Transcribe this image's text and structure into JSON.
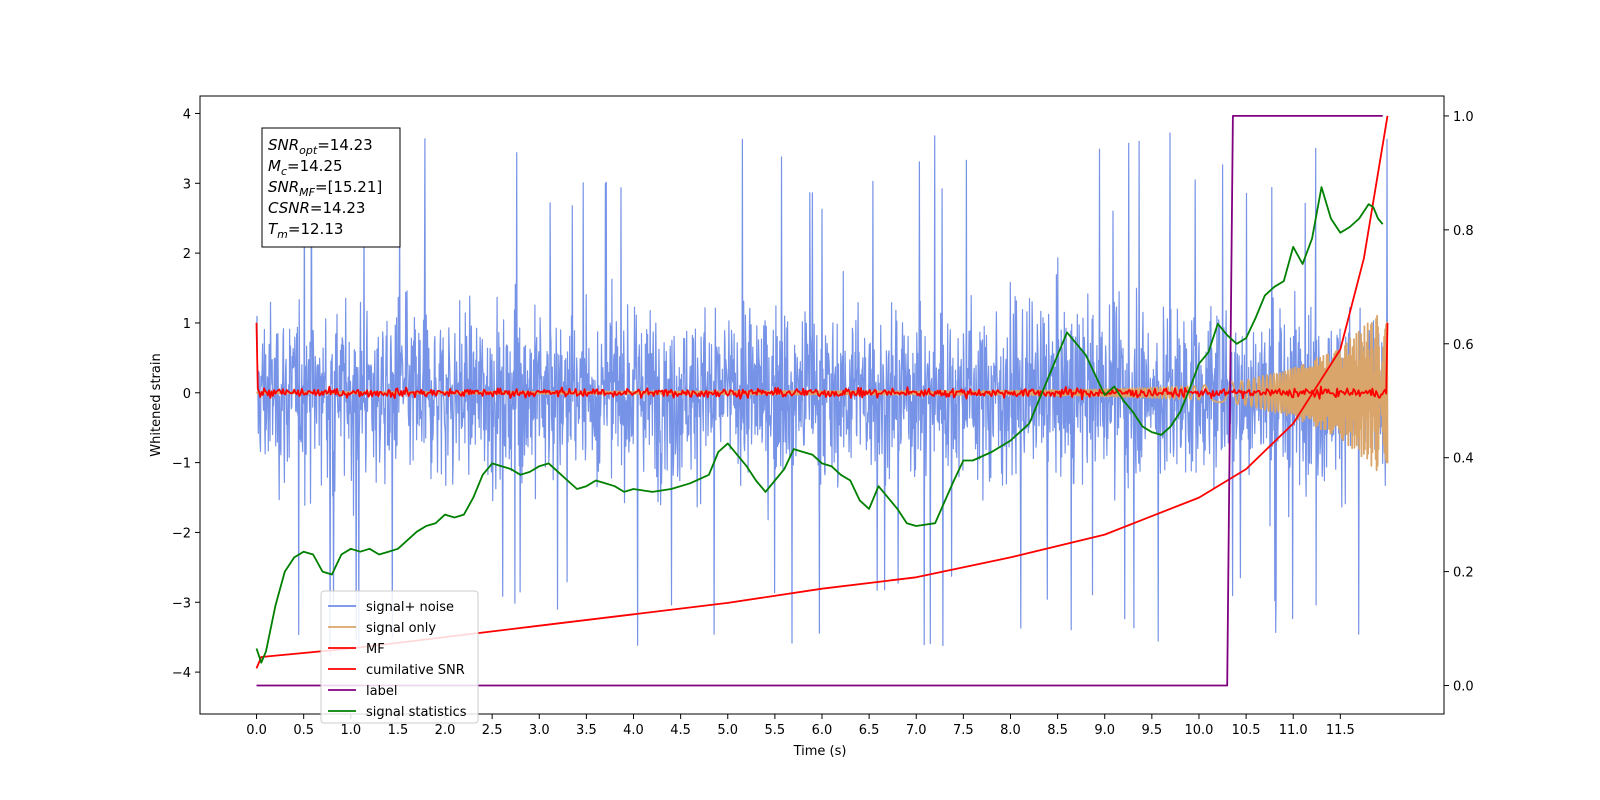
{
  "chart_data": {
    "type": "line",
    "xlabel": "Time (s)",
    "ylabel": "Whitened strain",
    "xlim": [
      -0.6,
      12.6
    ],
    "ylim": [
      -4.6,
      4.25
    ],
    "ylim_right": [
      -0.05,
      1.035
    ],
    "x_ticks": [
      0.0,
      0.5,
      1.0,
      1.5,
      2.0,
      2.5,
      3.0,
      3.5,
      4.0,
      4.5,
      5.0,
      5.5,
      6.0,
      6.5,
      7.0,
      7.5,
      8.0,
      8.5,
      9.0,
      9.5,
      10.0,
      10.5,
      11.0,
      11.5
    ],
    "x_tick_labels": [
      "0.0",
      "0.5",
      "1.0",
      "1.5",
      "2.0",
      "2.5",
      "3.0",
      "3.5",
      "4.0",
      "4.5",
      "5.0",
      "5.5",
      "6.0",
      "6.5",
      "7.0",
      "7.5",
      "8.0",
      "8.5",
      "9.0",
      "9.5",
      "10.0",
      "10.5",
      "11.0",
      "11.5"
    ],
    "y_ticks": [
      -4,
      -3,
      -2,
      -1,
      0,
      1,
      2,
      3,
      4
    ],
    "y_tick_labels": [
      "−4",
      "−3",
      "−2",
      "−1",
      "0",
      "1",
      "2",
      "3",
      "4"
    ],
    "y_right_ticks": [
      0.0,
      0.2,
      0.4,
      0.6,
      0.8,
      1.0
    ],
    "y_right_tick_labels": [
      "0.0",
      "0.2",
      "0.4",
      "0.6",
      "0.8",
      "1.0"
    ],
    "grid": false,
    "legend_position": "lower-left",
    "legend": [
      "signal+ noise",
      "signal only",
      "MF",
      "cumilative SNR",
      "label",
      "signal statistics"
    ],
    "annotation": [
      {
        "base": "SNR",
        "sub": "opt",
        "value": "=14.23"
      },
      {
        "base": "M",
        "sub": "c",
        "value": "=14.25"
      },
      {
        "base": "SNR",
        "sub": "MF",
        "value": "=[15.21]"
      },
      {
        "base": "CSNR",
        "sub": "",
        "value": "=14.23"
      },
      {
        "base": "T",
        "sub": "m",
        "value": "=12.13"
      }
    ],
    "series": [
      {
        "name": "signal+ noise",
        "axis": "left",
        "color": "#6f8de6",
        "kind": "noise",
        "x_range": [
          0,
          12.0
        ],
        "amplitude_typical": 1.3,
        "peak_max": 3.85,
        "peak_min": -4.15
      },
      {
        "name": "signal only",
        "axis": "left",
        "color": "#d9a56a",
        "kind": "chirp",
        "x_range": [
          0,
          12.0
        ],
        "envelope": {
          "x": [
            0,
            8.0,
            9.0,
            10.0,
            10.5,
            11.0,
            11.5,
            12.0
          ],
          "amp": [
            0.01,
            0.03,
            0.05,
            0.1,
            0.18,
            0.35,
            0.65,
            1.25
          ]
        }
      },
      {
        "name": "MF",
        "axis": "left",
        "color": "#ff0000",
        "kind": "mf",
        "x_range": [
          0,
          12.0
        ],
        "start_value": 1.0,
        "end_value": 1.0,
        "spread": 0.1
      },
      {
        "name": "cumilative SNR",
        "axis": "right",
        "color": "#ff0000",
        "x": [
          0.0,
          0.05,
          1.0,
          2.0,
          3.0,
          4.0,
          5.0,
          6.0,
          7.0,
          8.0,
          9.0,
          10.0,
          10.5,
          11.0,
          11.5,
          11.75,
          12.0
        ],
        "y": [
          0.03,
          0.05,
          0.065,
          0.085,
          0.105,
          0.125,
          0.145,
          0.17,
          0.19,
          0.225,
          0.265,
          0.33,
          0.38,
          0.46,
          0.59,
          0.75,
          1.0
        ]
      },
      {
        "name": "label",
        "axis": "right",
        "color": "#800080",
        "x": [
          0.0,
          10.3,
          10.36,
          11.95
        ],
        "y": [
          0.0,
          0.0,
          1.0,
          1.0
        ]
      },
      {
        "name": "signal statistics",
        "axis": "right",
        "color": "#008000",
        "x": [
          0.0,
          0.05,
          0.1,
          0.2,
          0.3,
          0.4,
          0.5,
          0.6,
          0.7,
          0.8,
          0.9,
          1.0,
          1.1,
          1.2,
          1.3,
          1.4,
          1.5,
          1.6,
          1.7,
          1.8,
          1.9,
          2.0,
          2.1,
          2.2,
          2.3,
          2.4,
          2.5,
          2.6,
          2.7,
          2.8,
          2.9,
          3.0,
          3.1,
          3.2,
          3.3,
          3.4,
          3.5,
          3.6,
          3.7,
          3.8,
          3.9,
          4.0,
          4.2,
          4.4,
          4.6,
          4.8,
          4.9,
          5.0,
          5.1,
          5.2,
          5.3,
          5.4,
          5.5,
          5.6,
          5.7,
          5.8,
          5.9,
          6.0,
          6.1,
          6.2,
          6.3,
          6.4,
          6.5,
          6.6,
          6.7,
          6.8,
          6.9,
          7.0,
          7.2,
          7.4,
          7.5,
          7.6,
          7.8,
          8.0,
          8.2,
          8.4,
          8.5,
          8.6,
          8.7,
          8.8,
          8.9,
          9.0,
          9.1,
          9.2,
          9.3,
          9.4,
          9.5,
          9.6,
          9.7,
          9.8,
          9.9,
          10.0,
          10.1,
          10.2,
          10.3,
          10.4,
          10.5,
          10.6,
          10.7,
          10.8,
          10.9,
          11.0,
          11.1,
          11.2,
          11.3,
          11.4,
          11.5,
          11.6,
          11.7,
          11.8,
          11.85,
          11.9,
          11.95
        ],
        "y": [
          0.065,
          0.04,
          0.06,
          0.14,
          0.2,
          0.225,
          0.235,
          0.23,
          0.2,
          0.195,
          0.23,
          0.24,
          0.235,
          0.24,
          0.23,
          0.235,
          0.24,
          0.255,
          0.27,
          0.28,
          0.285,
          0.3,
          0.295,
          0.3,
          0.33,
          0.37,
          0.39,
          0.385,
          0.38,
          0.37,
          0.375,
          0.385,
          0.39,
          0.375,
          0.36,
          0.345,
          0.35,
          0.36,
          0.355,
          0.35,
          0.34,
          0.345,
          0.34,
          0.345,
          0.355,
          0.37,
          0.41,
          0.425,
          0.405,
          0.385,
          0.36,
          0.34,
          0.36,
          0.38,
          0.415,
          0.41,
          0.405,
          0.39,
          0.385,
          0.37,
          0.36,
          0.325,
          0.31,
          0.35,
          0.33,
          0.31,
          0.285,
          0.28,
          0.285,
          0.36,
          0.395,
          0.395,
          0.41,
          0.43,
          0.46,
          0.54,
          0.58,
          0.62,
          0.6,
          0.58,
          0.545,
          0.51,
          0.525,
          0.5,
          0.48,
          0.455,
          0.445,
          0.44,
          0.455,
          0.48,
          0.52,
          0.565,
          0.585,
          0.635,
          0.615,
          0.6,
          0.61,
          0.645,
          0.685,
          0.7,
          0.71,
          0.77,
          0.74,
          0.785,
          0.875,
          0.82,
          0.795,
          0.805,
          0.82,
          0.845,
          0.84,
          0.82,
          0.81
        ]
      }
    ]
  }
}
